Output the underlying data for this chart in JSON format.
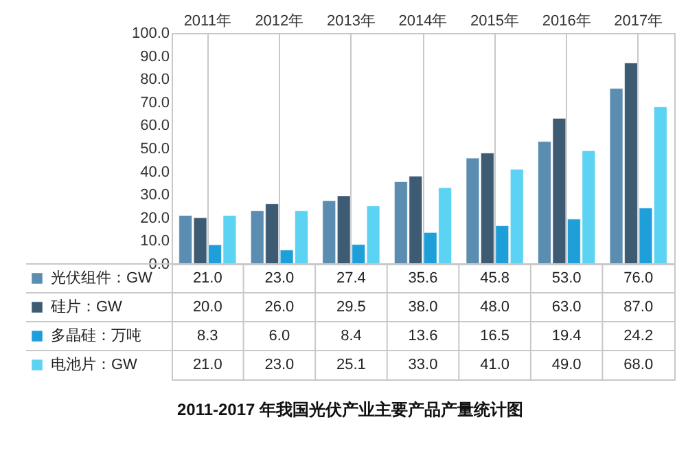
{
  "chart_data": {
    "type": "bar",
    "title": "2011-2017 年我国光伏产业主要产品产量统计图",
    "categories": [
      "2011年",
      "2012年",
      "2013年",
      "2014年",
      "2015年",
      "2016年",
      "2017年"
    ],
    "series": [
      {
        "name": "光伏组件：GW",
        "color": "#5b8db0",
        "values": [
          21.0,
          23.0,
          27.4,
          35.6,
          45.8,
          53.0,
          76.0
        ],
        "value_labels": [
          "21.0",
          "23.0",
          "27.4",
          "35.6",
          "45.8",
          "53.0",
          "76.0"
        ]
      },
      {
        "name": "硅片：GW",
        "color": "#3e5b74",
        "values": [
          20.0,
          26.0,
          29.5,
          38.0,
          48.0,
          63.0,
          87.0
        ],
        "value_labels": [
          "20.0",
          "26.0",
          "29.5",
          "38.0",
          "48.0",
          "63.0",
          "87.0"
        ]
      },
      {
        "name": "多晶硅：万吨",
        "color": "#1e9fd9",
        "values": [
          8.3,
          6.0,
          8.4,
          13.6,
          16.5,
          19.4,
          24.2
        ],
        "value_labels": [
          "8.3",
          "6.0",
          "8.4",
          "13.6",
          "16.5",
          "19.4",
          "24.2"
        ]
      },
      {
        "name": "电池片：GW",
        "color": "#5cd3f2",
        "values": [
          21.0,
          23.0,
          25.1,
          33.0,
          41.0,
          49.0,
          68.0
        ],
        "value_labels": [
          "21.0",
          "23.0",
          "25.1",
          "33.0",
          "41.0",
          "49.0",
          "68.0"
        ]
      }
    ],
    "ylim": [
      0,
      100
    ],
    "yticks": [
      {
        "value": 0,
        "label": "0.0"
      },
      {
        "value": 10,
        "label": "10.0"
      },
      {
        "value": 20,
        "label": "20.0"
      },
      {
        "value": 30,
        "label": "30.0"
      },
      {
        "value": 40,
        "label": "40.0"
      },
      {
        "value": 50,
        "label": "50.0"
      },
      {
        "value": 60,
        "label": "60.0"
      },
      {
        "value": 70,
        "label": "70.0"
      },
      {
        "value": 80,
        "label": "80.0"
      },
      {
        "value": 90,
        "label": "90.0"
      },
      {
        "value": 100,
        "label": "100.0"
      }
    ],
    "legend": "bottom",
    "grid": "x"
  }
}
